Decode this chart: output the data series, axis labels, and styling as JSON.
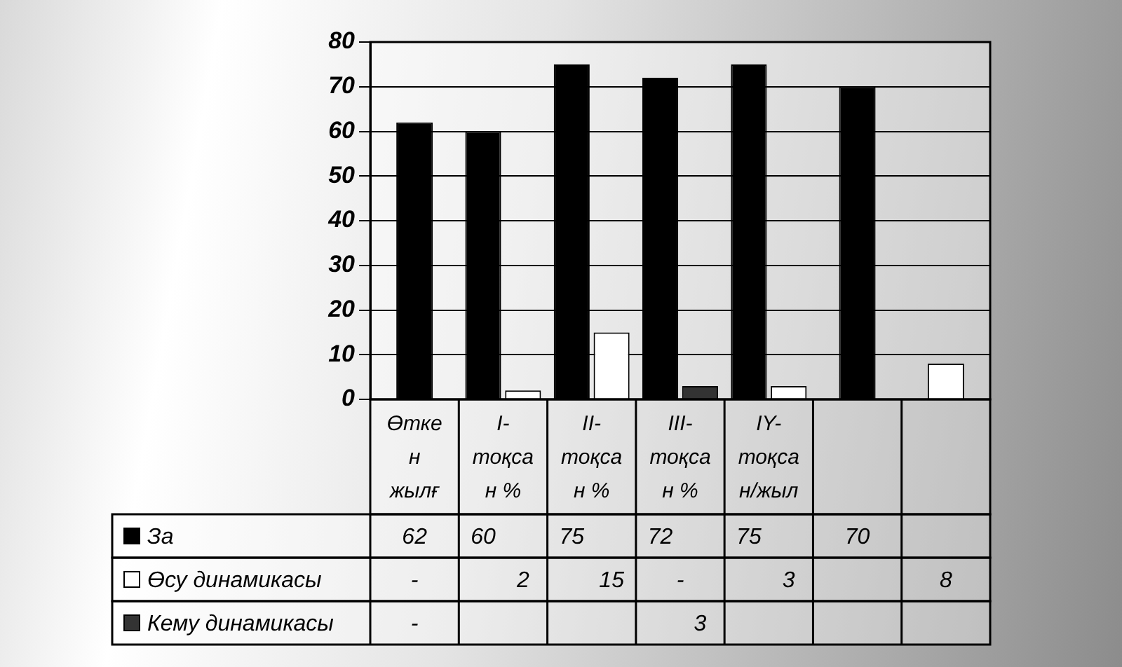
{
  "chart_data": {
    "type": "bar",
    "categories": [
      "Өткен жылғ",
      "I-тоқсан %",
      "II-тоқсан %",
      "III-тоқсан %",
      "IY-тоқсан/жыл",
      null,
      null
    ],
    "series": [
      {
        "name": "За",
        "color": "#000000",
        "values": [
          62,
          60,
          75,
          72,
          75,
          70,
          null
        ],
        "value_labels": [
          "62",
          "60",
          "75",
          "72",
          "75",
          "70",
          null
        ]
      },
      {
        "name": "Өсу динамикасы",
        "color": "#ffffff",
        "values": [
          null,
          2,
          15,
          null,
          3,
          null,
          8
        ],
        "value_labels": [
          "-",
          "2",
          "15",
          "-",
          "3",
          null,
          "8"
        ]
      },
      {
        "name": "Кему динамикасы",
        "color": "#333333",
        "values": [
          null,
          null,
          null,
          3,
          null,
          null,
          null
        ],
        "value_labels": [
          "-",
          null,
          null,
          "3",
          null,
          null,
          null
        ]
      }
    ],
    "ylim": [
      0,
      80
    ],
    "yticks": [
      0,
      10,
      20,
      30,
      40,
      50,
      60,
      70,
      80
    ],
    "grid": "y",
    "legend": "bottom"
  }
}
